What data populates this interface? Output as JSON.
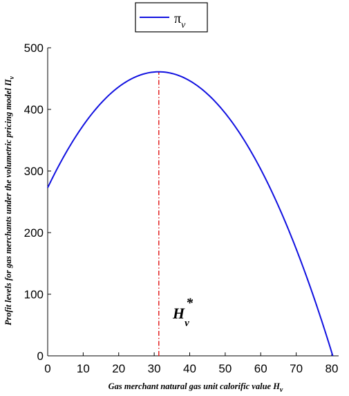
{
  "chart_data": {
    "type": "line",
    "title": "",
    "xlabel": "Gas merchant natural gas unit calorific value H",
    "xlabel_sub": "v",
    "ylabel": "Profit levels for gas merchants under the volumetric pricing model Π",
    "ylabel_sub": "v",
    "xlim": [
      0,
      80
    ],
    "ylim": [
      0,
      500
    ],
    "x_ticks": [
      "0",
      "10",
      "20",
      "30",
      "40",
      "50",
      "60",
      "70",
      "80"
    ],
    "y_ticks": [
      "0",
      "100",
      "200",
      "300",
      "400",
      "500"
    ],
    "grid": false,
    "legend_position": "top",
    "series": [
      {
        "name": "π",
        "name_sub": "v",
        "color": "#1010e0",
        "function": "quadratic with vertex (31.3, 461) and root at x = 80.3",
        "x": [
          0,
          10,
          20,
          31.3,
          40,
          50,
          60,
          70,
          80.3
        ],
        "y": [
          271,
          385,
          450,
          461,
          446,
          385,
          290,
          163,
          0
        ]
      }
    ],
    "annotations": [
      {
        "type": "vertical-dashdot-line",
        "x": 31.3,
        "y_from": 0,
        "y_to": 461,
        "color": "#e01010",
        "label": "H",
        "label_sub": "v",
        "label_sup": "*"
      }
    ]
  }
}
